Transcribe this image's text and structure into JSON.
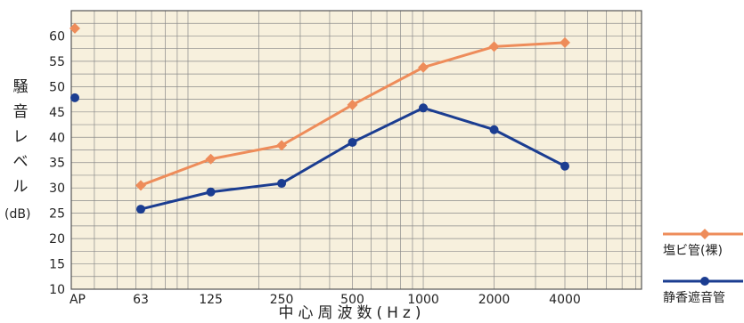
{
  "chart_data": {
    "type": "line",
    "xlabel": "中心周波数(Hz)",
    "ylabel": "騒音レベル",
    "ylabel_unit": "(dB)",
    "categories": [
      "AP",
      "63",
      "125",
      "250",
      "500",
      "1000",
      "2000",
      "4000"
    ],
    "y_ticks": [
      10,
      15,
      20,
      25,
      30,
      35,
      40,
      45,
      50,
      55,
      60
    ],
    "ylim": [
      10,
      65
    ],
    "x_scale": "log",
    "grid": true,
    "legend_position": "right",
    "series": [
      {
        "name": "塩ビ管(裸)",
        "color": "#ee8c5a",
        "marker": "diamond",
        "ap": 61.5,
        "values": [
          null,
          30.5,
          35.7,
          38.4,
          46.4,
          53.8,
          57.9,
          58.7
        ]
      },
      {
        "name": "静香遮音管",
        "color": "#1b3d91",
        "marker": "circle",
        "ap": 47.8,
        "values": [
          null,
          25.8,
          29.2,
          30.9,
          39.0,
          45.8,
          41.5,
          34.3
        ]
      }
    ]
  }
}
